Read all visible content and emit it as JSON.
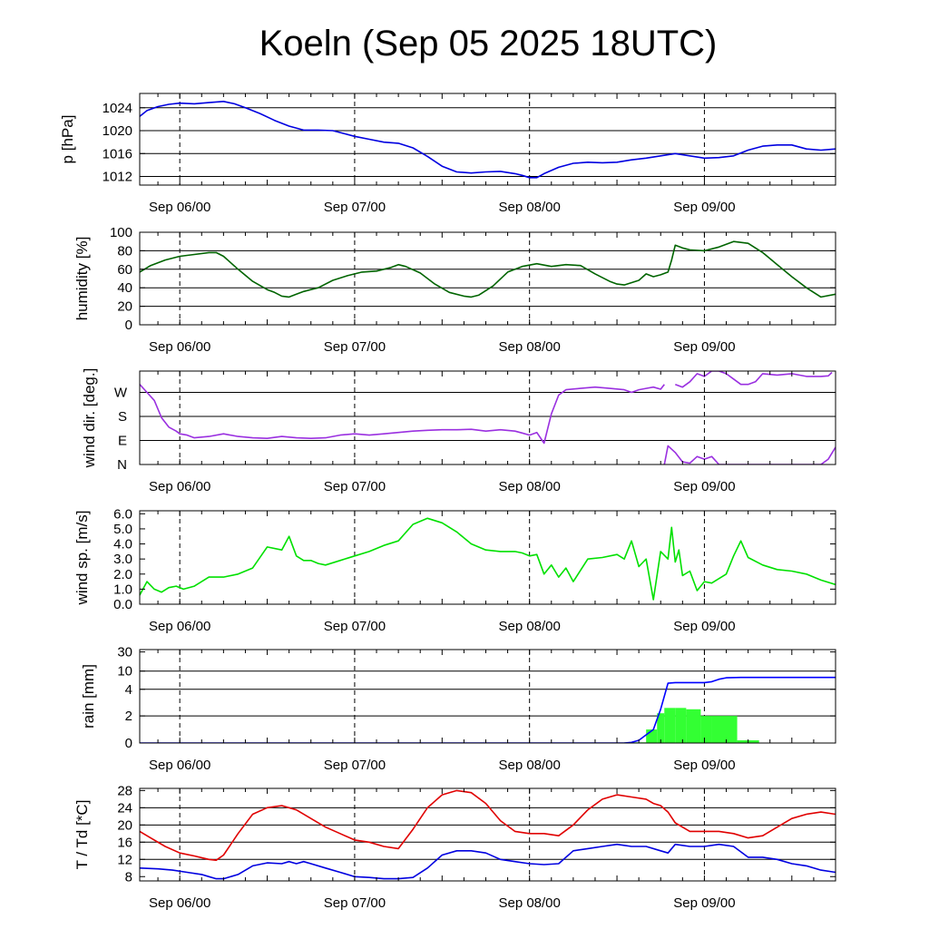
{
  "title": "Koeln (Sep 05 2025 18UTC)",
  "date_labels": [
    "Sep 06/00",
    "Sep 07/00",
    "Sep 08/00",
    "Sep 09/00"
  ],
  "date_label_hours": [
    6,
    54,
    102,
    150
  ],
  "x_range_hours": [
    -5,
    186
  ],
  "colors": {
    "pressure": "#0000e0",
    "humidity": "#006400",
    "wind_dir": "#9a30e0",
    "wind_speed": "#00e000",
    "rain_total": "#0000ff",
    "rain_bars": "#33ff33",
    "temperature": "#e00000",
    "dewpoint": "#0000e0"
  },
  "chart_data": [
    {
      "id": "pressure",
      "type": "line",
      "ylabel": "p [hPa]",
      "ylim": [
        1010.5,
        1026.5
      ],
      "yticks": [
        1012,
        1016,
        1020,
        1024
      ],
      "ytick_labels": [
        "1012",
        "1016",
        "1020",
        "1024"
      ],
      "grid": [
        1012,
        1016,
        1020,
        1024
      ],
      "series": [
        {
          "name": "pressure",
          "color_key": "pressure",
          "x": [
            -5,
            -3,
            0,
            3,
            6,
            10,
            14,
            18,
            21,
            24,
            28,
            32,
            36,
            40,
            44,
            48,
            54,
            58,
            62,
            66,
            70,
            74,
            78,
            82,
            86,
            90,
            94,
            98,
            100,
            102,
            104,
            106,
            110,
            114,
            118,
            122,
            126,
            130,
            134,
            138,
            142,
            146,
            150,
            154,
            158,
            162,
            166,
            170,
            174,
            178,
            182,
            186
          ],
          "y": [
            1022.5,
            1023.5,
            1024.2,
            1024.6,
            1024.8,
            1024.7,
            1024.9,
            1025.1,
            1024.7,
            1024.0,
            1023.0,
            1021.8,
            1020.8,
            1020.1,
            1020.1,
            1020.0,
            1019.0,
            1018.5,
            1018.0,
            1017.8,
            1017.0,
            1015.5,
            1013.8,
            1012.8,
            1012.6,
            1012.8,
            1012.9,
            1012.5,
            1012.2,
            1011.8,
            1011.8,
            1012.5,
            1013.6,
            1014.3,
            1014.5,
            1014.4,
            1014.5,
            1014.9,
            1015.2,
            1015.6,
            1016.0,
            1015.6,
            1015.2,
            1015.3,
            1015.6,
            1016.6,
            1017.3,
            1017.5,
            1017.5,
            1016.8,
            1016.6,
            1016.8
          ]
        }
      ]
    },
    {
      "id": "humidity",
      "type": "line",
      "ylabel": "humidity [%]",
      "ylim": [
        0,
        100
      ],
      "yticks": [
        0,
        20,
        40,
        60,
        80,
        100
      ],
      "ytick_labels": [
        "0",
        "20",
        "40",
        "60",
        "80",
        "100"
      ],
      "grid": [
        20,
        40,
        60,
        80
      ],
      "series": [
        {
          "name": "humidity",
          "color_key": "humidity",
          "x": [
            -5,
            -2,
            2,
            6,
            10,
            14,
            16,
            18,
            22,
            26,
            30,
            32,
            34,
            36,
            38,
            40,
            42,
            44,
            48,
            52,
            56,
            60,
            64,
            66,
            68,
            72,
            76,
            80,
            84,
            86,
            88,
            92,
            96,
            100,
            104,
            108,
            112,
            116,
            120,
            124,
            126,
            128,
            132,
            134,
            136,
            138,
            140,
            141,
            142,
            144,
            146,
            150,
            154,
            158,
            162,
            166,
            170,
            174,
            178,
            182,
            186
          ],
          "y": [
            57,
            64,
            70,
            74,
            76,
            78,
            78,
            74,
            60,
            47,
            38,
            35,
            31,
            30,
            33,
            36,
            38,
            40,
            48,
            53,
            57,
            58,
            62,
            65,
            63,
            56,
            44,
            35,
            31,
            30,
            32,
            42,
            57,
            63,
            66,
            63,
            65,
            64,
            55,
            47,
            44,
            43,
            48,
            55,
            52,
            54,
            57,
            70,
            86,
            83,
            81,
            80,
            84,
            90,
            88,
            78,
            65,
            52,
            40,
            30,
            33
          ]
        }
      ]
    },
    {
      "id": "wind_direction",
      "type": "scatter",
      "ylabel": "wind dir. [deg.]",
      "ylim": [
        0,
        350
      ],
      "yticks": [
        0,
        90,
        180,
        270
      ],
      "ytick_labels": [
        "N",
        "E",
        "S",
        "W"
      ],
      "grid": [
        90,
        180,
        270
      ],
      "series": [
        {
          "name": "wind direction",
          "color_key": "wind_dir",
          "x": [
            -5,
            -3,
            -1,
            1,
            3,
            5,
            6,
            8,
            10,
            14,
            18,
            22,
            26,
            30,
            34,
            38,
            42,
            46,
            50,
            54,
            58,
            62,
            66,
            70,
            74,
            78,
            82,
            86,
            90,
            94,
            98,
            100,
            102,
            104,
            106,
            108,
            110,
            112,
            116,
            120,
            124,
            128,
            130,
            132,
            134,
            136,
            138,
            139
          ],
          "y": [
            300,
            270,
            240,
            175,
            140,
            125,
            115,
            110,
            100,
            105,
            115,
            105,
            100,
            98,
            105,
            100,
            98,
            100,
            110,
            115,
            110,
            115,
            120,
            125,
            128,
            130,
            130,
            132,
            125,
            130,
            125,
            118,
            110,
            120,
            80,
            190,
            260,
            280,
            285,
            290,
            285,
            280,
            270,
            280,
            285,
            290,
            282,
            300
          ]
        },
        {
          "name": "wind direction (upper)",
          "color_key": "wind_dir",
          "x": [
            142,
            144,
            146,
            148,
            150,
            152,
            154,
            156,
            158,
            160,
            162,
            164,
            166,
            170,
            174,
            178,
            182,
            184,
            185
          ],
          "y": [
            300,
            290,
            310,
            340,
            330,
            350,
            350,
            340,
            320,
            300,
            300,
            310,
            340,
            335,
            340,
            330,
            330,
            332,
            345
          ]
        },
        {
          "name": "wind direction (lower)",
          "color_key": "wind_dir",
          "x": [
            139,
            140,
            142,
            144,
            146,
            148,
            150,
            152,
            154,
            156,
            158,
            160,
            162,
            164,
            166,
            168,
            170,
            172,
            174,
            176,
            178,
            180,
            182,
            184,
            186
          ],
          "y": [
            0,
            70,
            45,
            10,
            5,
            30,
            20,
            30,
            0,
            0,
            0,
            0,
            0,
            0,
            0,
            0,
            0,
            0,
            0,
            0,
            0,
            0,
            0,
            20,
            65
          ]
        }
      ]
    },
    {
      "id": "wind_speed",
      "type": "line",
      "ylabel": "wind sp. [m/s]",
      "ylim": [
        0,
        6.2
      ],
      "yticks": [
        0,
        1,
        2,
        3,
        4,
        5,
        6
      ],
      "ytick_labels": [
        "0.0",
        "1.0",
        "2.0",
        "3.0",
        "4.0",
        "5.0",
        "6.0"
      ],
      "grid": [],
      "series": [
        {
          "name": "wind speed",
          "color_key": "wind_speed",
          "x": [
            -5,
            -3,
            -1,
            1,
            3,
            5,
            7,
            10,
            14,
            18,
            22,
            26,
            30,
            34,
            36,
            38,
            40,
            42,
            44,
            46,
            50,
            54,
            58,
            62,
            66,
            70,
            74,
            78,
            82,
            86,
            90,
            94,
            98,
            100,
            102,
            104,
            106,
            108,
            110,
            112,
            114,
            118,
            122,
            126,
            128,
            130,
            132,
            134,
            136,
            138,
            140,
            141,
            142,
            143,
            144,
            146,
            148,
            150,
            152,
            156,
            158,
            160,
            162,
            166,
            170,
            174,
            178,
            182,
            186
          ],
          "y": [
            0.6,
            1.5,
            1.0,
            0.8,
            1.1,
            1.2,
            1.0,
            1.2,
            1.8,
            1.8,
            2.0,
            2.4,
            3.8,
            3.6,
            4.5,
            3.2,
            2.9,
            2.9,
            2.7,
            2.6,
            2.9,
            3.2,
            3.5,
            3.9,
            4.2,
            5.3,
            5.7,
            5.4,
            4.8,
            4.0,
            3.6,
            3.5,
            3.5,
            3.4,
            3.2,
            3.3,
            2.0,
            2.6,
            1.8,
            2.4,
            1.5,
            3.0,
            3.1,
            3.3,
            3.0,
            4.2,
            2.5,
            3.0,
            0.3,
            3.5,
            3.0,
            5.1,
            2.8,
            3.6,
            1.9,
            2.2,
            0.9,
            1.5,
            1.4,
            2.0,
            3.2,
            4.2,
            3.1,
            2.6,
            2.3,
            2.2,
            2.0,
            1.6,
            1.3
          ]
        }
      ]
    },
    {
      "id": "rain",
      "type": "bar+line",
      "ylabel": "rain [mm]",
      "ylim": [
        0,
        30
      ],
      "yticks": [
        0,
        2,
        4,
        10,
        30
      ],
      "ytick_labels": [
        "0",
        "2",
        "4",
        "10",
        "30"
      ],
      "grid": [
        2,
        4,
        10
      ],
      "bars": {
        "name": "rain per interval",
        "color_key": "rain_bars",
        "x_start": [
          128,
          134,
          137,
          139,
          142,
          145,
          149,
          152,
          159
        ],
        "x_end": [
          134,
          137,
          139,
          142,
          145,
          149,
          152,
          159,
          165
        ],
        "values": [
          0.05,
          1.0,
          2.2,
          2.6,
          2.6,
          2.5,
          2.0,
          2.0,
          0.2
        ]
      },
      "series": [
        {
          "name": "rain accumulated",
          "color_key": "rain_total",
          "x": [
            -5,
            128,
            130,
            132,
            134,
            136,
            138,
            140,
            142,
            144,
            150,
            152,
            154,
            156,
            160,
            170,
            186
          ],
          "y": [
            0,
            0,
            0.05,
            0.2,
            0.6,
            1.0,
            2.5,
            6.0,
            6.2,
            6.2,
            6.2,
            6.5,
            7.3,
            7.8,
            7.9,
            7.9,
            7.9
          ]
        }
      ]
    },
    {
      "id": "temperature",
      "type": "line",
      "ylabel": "T / Td [*C]",
      "ylim": [
        7,
        28.5
      ],
      "yticks": [
        8,
        12,
        16,
        20,
        24,
        28
      ],
      "ytick_labels": [
        "8",
        "12",
        "16",
        "20",
        "24",
        "28"
      ],
      "grid": [
        12,
        16,
        20,
        24
      ],
      "series": [
        {
          "name": "T",
          "color_key": "temperature",
          "x": [
            -5,
            -2,
            2,
            6,
            10,
            14,
            16,
            18,
            22,
            26,
            30,
            34,
            38,
            42,
            46,
            50,
            54,
            58,
            62,
            66,
            70,
            74,
            78,
            82,
            86,
            90,
            94,
            98,
            102,
            106,
            110,
            114,
            118,
            122,
            126,
            130,
            134,
            136,
            138,
            140,
            142,
            146,
            150,
            154,
            158,
            162,
            166,
            170,
            174,
            178,
            182,
            186
          ],
          "y": [
            18.5,
            17.0,
            15.0,
            13.5,
            12.8,
            12.0,
            11.8,
            13.0,
            18.0,
            22.5,
            24.0,
            24.5,
            23.5,
            21.5,
            19.5,
            18.0,
            16.5,
            16.0,
            15.0,
            14.5,
            19.0,
            24.0,
            27.0,
            28.0,
            27.5,
            25.0,
            21.0,
            18.5,
            18.0,
            18.0,
            17.5,
            20.0,
            23.5,
            26.0,
            27.0,
            26.5,
            26.0,
            25.0,
            24.5,
            23.0,
            20.5,
            18.5,
            18.5,
            18.5,
            18.0,
            17.0,
            17.5,
            19.5,
            21.5,
            22.5,
            23.0,
            22.5
          ]
        },
        {
          "name": "Td",
          "color_key": "dewpoint",
          "x": [
            -5,
            0,
            4,
            8,
            12,
            14,
            16,
            18,
            22,
            26,
            30,
            34,
            36,
            38,
            40,
            42,
            46,
            50,
            54,
            58,
            62,
            66,
            70,
            74,
            78,
            82,
            86,
            90,
            94,
            98,
            102,
            106,
            110,
            114,
            118,
            122,
            126,
            130,
            134,
            138,
            140,
            142,
            146,
            150,
            154,
            158,
            162,
            166,
            170,
            174,
            178,
            182,
            186
          ],
          "y": [
            10.0,
            9.8,
            9.5,
            9.0,
            8.5,
            8.0,
            7.5,
            7.5,
            8.5,
            10.5,
            11.2,
            11.0,
            11.5,
            11.0,
            11.5,
            11.0,
            10.0,
            9.0,
            8.0,
            7.8,
            7.5,
            7.5,
            7.8,
            10.0,
            13.0,
            14.0,
            14.0,
            13.5,
            12.0,
            11.5,
            11.0,
            10.8,
            11.0,
            14.0,
            14.5,
            15.0,
            15.5,
            15.0,
            15.0,
            14.0,
            13.5,
            15.5,
            15.0,
            15.0,
            15.5,
            15.0,
            12.5,
            12.5,
            12.0,
            11.0,
            10.5,
            9.5,
            9.0
          ]
        }
      ]
    }
  ]
}
